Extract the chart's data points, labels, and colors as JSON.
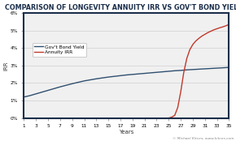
{
  "title": "COMPARISON OF LONGEVITY ANNUITY IRR VS GOV'T BOND YIELDS",
  "xlabel": "Years",
  "ylabel": "IRR",
  "figure_bg_color": "#ffffff",
  "plot_bg_color": "#f0f0f0",
  "border_color": "#1a2e4a",
  "bond_color": "#2f4f6f",
  "annuity_color": "#c0392b",
  "title_color": "#1a2e4a",
  "ylim": [
    0.0,
    0.06
  ],
  "yticks": [
    0.0,
    0.01,
    0.02,
    0.03,
    0.04,
    0.05,
    0.06
  ],
  "ytick_labels": [
    "0%",
    "1%",
    "2%",
    "3%",
    "4%",
    "5%",
    "6%"
  ],
  "xticks": [
    1,
    3,
    5,
    7,
    9,
    11,
    13,
    15,
    17,
    19,
    21,
    23,
    25,
    27,
    29,
    31,
    33,
    35
  ],
  "bond_years": [
    1,
    2,
    3,
    4,
    5,
    6,
    7,
    8,
    9,
    10,
    11,
    12,
    13,
    14,
    15,
    16,
    17,
    18,
    19,
    20,
    21,
    22,
    23,
    24,
    25,
    26,
    27,
    28,
    29,
    30,
    31,
    32,
    33,
    34,
    35
  ],
  "bond_values": [
    0.012,
    0.0128,
    0.0138,
    0.0148,
    0.0158,
    0.0168,
    0.0178,
    0.0187,
    0.0196,
    0.0204,
    0.0212,
    0.0218,
    0.0224,
    0.0229,
    0.0234,
    0.0238,
    0.0242,
    0.0246,
    0.0249,
    0.0252,
    0.0255,
    0.0258,
    0.0261,
    0.0264,
    0.0267,
    0.027,
    0.0272,
    0.0275,
    0.0277,
    0.0279,
    0.0281,
    0.0283,
    0.0285,
    0.0287,
    0.0289
  ],
  "annuity_years": [
    25,
    25.5,
    26,
    26.5,
    27,
    27.5,
    28,
    28.5,
    29,
    29.5,
    30,
    30.5,
    31,
    31.5,
    32,
    32.5,
    33,
    33.5,
    34,
    34.5,
    35
  ],
  "annuity_values": [
    0.0,
    0.0005,
    0.0015,
    0.006,
    0.015,
    0.026,
    0.034,
    0.039,
    0.042,
    0.044,
    0.0455,
    0.0468,
    0.0478,
    0.0488,
    0.0496,
    0.0504,
    0.051,
    0.0516,
    0.0521,
    0.0527,
    0.0535
  ],
  "legend_bond": "Gov't Bond Yield",
  "legend_annuity": "Annuity IRR",
  "watermark": "© Michael Kitces, www.kitces.com",
  "title_fontsize": 5.8,
  "axis_label_fontsize": 5.0,
  "tick_fontsize": 4.2,
  "legend_fontsize": 4.2,
  "watermark_fontsize": 3.2
}
